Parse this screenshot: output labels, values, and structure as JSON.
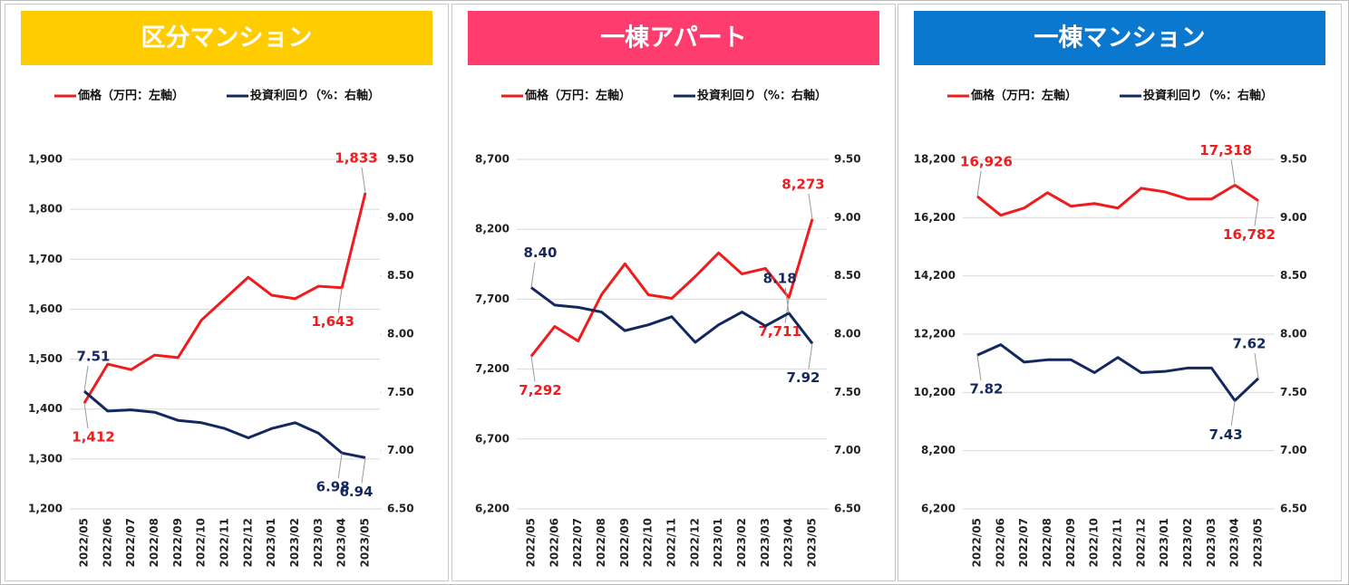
{
  "chart_data": [
    {
      "type": "line",
      "title": "区分マンション",
      "header_color": "#ffcc00",
      "categories": [
        "2022/05",
        "2022/06",
        "2022/07",
        "2022/08",
        "2022/09",
        "2022/10",
        "2022/11",
        "2022/12",
        "2023/01",
        "2023/02",
        "2023/03",
        "2023/04",
        "2023/05"
      ],
      "series": [
        {
          "name": "価格（万円：左軸）",
          "color": "#ee1c1c",
          "values": [
            1412,
            1490,
            1479,
            1508,
            1503,
            1578,
            1621,
            1664,
            1628,
            1621,
            1646,
            1643,
            1833
          ],
          "value_labels": [
            "1,412",
            null,
            null,
            null,
            null,
            null,
            null,
            null,
            null,
            null,
            null,
            "1,643",
            "1,833"
          ]
        },
        {
          "name": "投資利回り（%：右軸）",
          "color": "#13285f",
          "axis": "y2",
          "values": [
            7.51,
            7.34,
            7.35,
            7.33,
            7.26,
            7.24,
            7.19,
            7.11,
            7.19,
            7.24,
            7.15,
            6.98,
            6.94
          ],
          "value_labels": [
            "7.51",
            null,
            null,
            null,
            null,
            null,
            null,
            null,
            null,
            null,
            null,
            "6.98",
            "6.94"
          ]
        }
      ],
      "ylim": [
        1200,
        1900
      ],
      "yticks": [
        {
          "value": 1200,
          "label": "1,200"
        },
        {
          "value": 1300,
          "label": "1,300"
        },
        {
          "value": 1400,
          "label": "1,400"
        },
        {
          "value": 1500,
          "label": "1,500"
        },
        {
          "value": 1600,
          "label": "1,600"
        },
        {
          "value": 1700,
          "label": "1,700"
        },
        {
          "value": 1800,
          "label": "1,800"
        },
        {
          "value": 1900,
          "label": "1,900"
        }
      ],
      "y2lim": [
        6.5,
        9.5
      ],
      "y2ticks": [
        {
          "value": 6.5,
          "label": "6.50"
        },
        {
          "value": 7,
          "label": "7.00"
        },
        {
          "value": 7.5,
          "label": "7.50"
        },
        {
          "value": 8,
          "label": "8.00"
        },
        {
          "value": 8.5,
          "label": "8.50"
        },
        {
          "value": 9,
          "label": "9.00"
        },
        {
          "value": 9.5,
          "label": "9.50"
        }
      ],
      "grid": true
    },
    {
      "type": "line",
      "title": "一棟アパート",
      "header_color": "#ff3c6e",
      "categories": [
        "2022/05",
        "2022/06",
        "2022/07",
        "2022/08",
        "2022/09",
        "2022/10",
        "2022/11",
        "2022/12",
        "2023/01",
        "2023/02",
        "2023/03",
        "2023/04",
        "2023/05"
      ],
      "series": [
        {
          "name": "価格（万円：左軸）",
          "color": "#ee1c1c",
          "values": [
            7292,
            7505,
            7401,
            7732,
            7953,
            7732,
            7706,
            7862,
            8031,
            7881,
            7920,
            7711,
            8273
          ],
          "value_labels": [
            "7,292",
            null,
            null,
            null,
            null,
            null,
            null,
            null,
            null,
            null,
            null,
            "7,711",
            "8,273"
          ]
        },
        {
          "name": "投資利回り（%：右軸）",
          "color": "#13285f",
          "axis": "y2",
          "values": [
            8.4,
            8.25,
            8.23,
            8.19,
            8.03,
            8.08,
            8.15,
            7.93,
            8.08,
            8.19,
            8.07,
            8.18,
            7.92
          ],
          "value_labels": [
            "8.40",
            null,
            null,
            null,
            null,
            null,
            null,
            null,
            null,
            null,
            null,
            "8.18",
            "7.92"
          ]
        }
      ],
      "ylim": [
        6200,
        8700
      ],
      "yticks": [
        {
          "value": 6200,
          "label": "6,200"
        },
        {
          "value": 6700,
          "label": "6,700"
        },
        {
          "value": 7200,
          "label": "7,200"
        },
        {
          "value": 7700,
          "label": "7,700"
        },
        {
          "value": 8200,
          "label": "8,200"
        },
        {
          "value": 8700,
          "label": "8,700"
        }
      ],
      "y2lim": [
        6.5,
        9.5
      ],
      "y2ticks": [
        {
          "value": 6.5,
          "label": "6.50"
        },
        {
          "value": 7,
          "label": "7.00"
        },
        {
          "value": 7.5,
          "label": "7.50"
        },
        {
          "value": 8,
          "label": "8.00"
        },
        {
          "value": 8.5,
          "label": "8.50"
        },
        {
          "value": 9,
          "label": "9.00"
        },
        {
          "value": 9.5,
          "label": "9.50"
        }
      ],
      "grid": true
    },
    {
      "type": "line",
      "title": "一棟マンション",
      "header_color": "#0b78d0",
      "categories": [
        "2022/05",
        "2022/06",
        "2022/07",
        "2022/08",
        "2022/09",
        "2022/10",
        "2022/11",
        "2022/12",
        "2023/01",
        "2023/02",
        "2023/03",
        "2023/04",
        "2023/05"
      ],
      "series": [
        {
          "name": "価格（万円：左軸）",
          "color": "#ee1c1c",
          "values": [
            16926,
            16282,
            16530,
            17056,
            16592,
            16684,
            16530,
            17210,
            17087,
            16839,
            16839,
            17318,
            16782
          ],
          "value_labels": [
            "16,926",
            null,
            null,
            null,
            null,
            null,
            null,
            null,
            null,
            null,
            null,
            "17,318",
            "16,782"
          ]
        },
        {
          "name": "投資利回り（%：右軸）",
          "color": "#13285f",
          "axis": "y2",
          "values": [
            7.82,
            7.91,
            7.76,
            7.78,
            7.78,
            7.67,
            7.8,
            7.67,
            7.68,
            7.71,
            7.71,
            7.43,
            7.62
          ],
          "value_labels": [
            "7.82",
            null,
            null,
            null,
            null,
            null,
            null,
            null,
            null,
            null,
            null,
            "7.43",
            "7.62"
          ]
        }
      ],
      "ylim": [
        6200,
        18200
      ],
      "yticks": [
        {
          "value": 6200,
          "label": "6,200"
        },
        {
          "value": 8200,
          "label": "8,200"
        },
        {
          "value": 10200,
          "label": "10,200"
        },
        {
          "value": 12200,
          "label": "12,200"
        },
        {
          "value": 14200,
          "label": "14,200"
        },
        {
          "value": 16200,
          "label": "16,200"
        },
        {
          "value": 18200,
          "label": "18,200"
        }
      ],
      "y2lim": [
        6.5,
        9.5
      ],
      "y2ticks": [
        {
          "value": 6.5,
          "label": "6.50"
        },
        {
          "value": 7,
          "label": "7.00"
        },
        {
          "value": 7.5,
          "label": "7.50"
        },
        {
          "value": 8,
          "label": "8.00"
        },
        {
          "value": 8.5,
          "label": "8.50"
        },
        {
          "value": 9,
          "label": "9.00"
        },
        {
          "value": 9.5,
          "label": "9.50"
        }
      ],
      "grid": true
    }
  ]
}
